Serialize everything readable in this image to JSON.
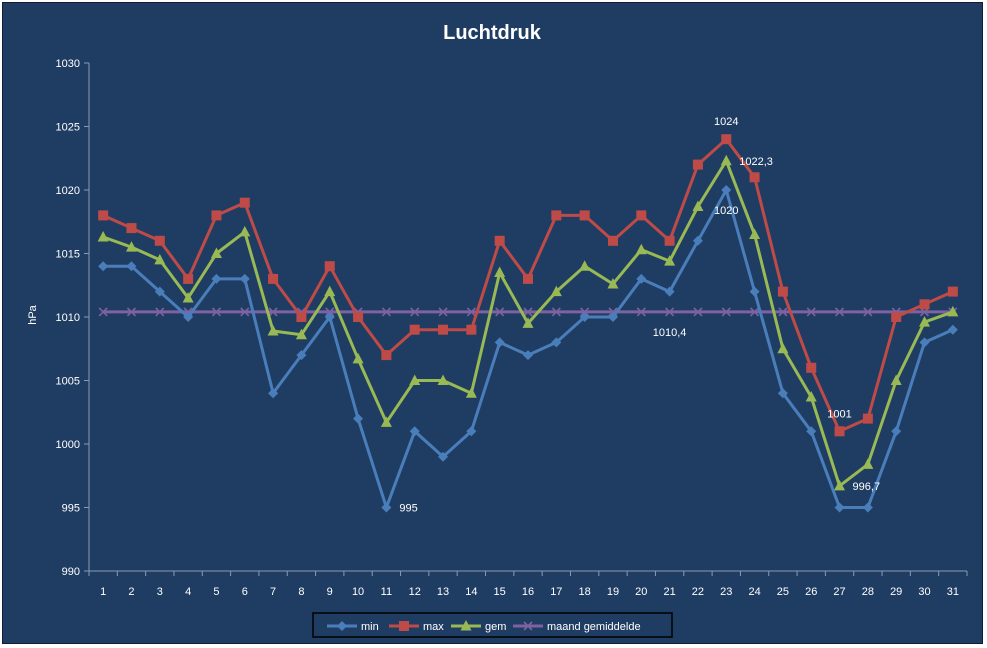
{
  "chart_data": {
    "type": "line",
    "title": "Luchtdruk",
    "xlabel": "",
    "ylabel": "hPa",
    "ylim": [
      990,
      1030
    ],
    "yticks": [
      990,
      995,
      1000,
      1005,
      1010,
      1015,
      1020,
      1025,
      1030
    ],
    "categories": [
      "1",
      "2",
      "3",
      "4",
      "5",
      "6",
      "7",
      "8",
      "9",
      "10",
      "11",
      "12",
      "13",
      "14",
      "15",
      "16",
      "17",
      "18",
      "19",
      "20",
      "21",
      "22",
      "23",
      "24",
      "25",
      "26",
      "27",
      "28",
      "29",
      "30",
      "31"
    ],
    "grid": false,
    "legend_position": "bottom",
    "series": [
      {
        "name": "min",
        "color": "#4a7ebb",
        "marker": "diamond",
        "values": [
          1014,
          1014,
          1012,
          1010,
          1013,
          1013,
          1004,
          1007,
          1010,
          1002,
          995,
          1001,
          999,
          1001,
          1008,
          1007,
          1008,
          1010,
          1010,
          1013,
          1012,
          1016,
          1020,
          1012,
          1004,
          1001,
          995,
          995,
          1001,
          1008,
          1009
        ]
      },
      {
        "name": "max",
        "color": "#be4b48",
        "marker": "square",
        "values": [
          1018,
          1017,
          1016,
          1013,
          1018,
          1019,
          1013,
          1010,
          1014,
          1010,
          1007,
          1009,
          1009,
          1009,
          1016,
          1013,
          1018,
          1018,
          1016,
          1018,
          1016,
          1022,
          1024,
          1021,
          1012,
          1006,
          1001,
          1002,
          1010,
          1011,
          1012
        ]
      },
      {
        "name": "gem",
        "color": "#98b954",
        "marker": "triangle",
        "values": [
          1016.3,
          1015.5,
          1014.5,
          1011.5,
          1015,
          1016.7,
          1008.9,
          1008.6,
          1012,
          1006.7,
          1001.7,
          1005,
          1005,
          1004,
          1013.5,
          1009.5,
          1012,
          1014,
          1012.6,
          1015.3,
          1014.4,
          1018.7,
          1022.3,
          1016.5,
          1007.5,
          1003.7,
          996.7,
          998.4,
          1005,
          1009.6,
          1010.4
        ]
      },
      {
        "name": "maand gemiddelde",
        "color": "#7e62a1",
        "marker": "x",
        "values": [
          1010.4,
          1010.4,
          1010.4,
          1010.4,
          1010.4,
          1010.4,
          1010.4,
          1010.4,
          1010.4,
          1010.4,
          1010.4,
          1010.4,
          1010.4,
          1010.4,
          1010.4,
          1010.4,
          1010.4,
          1010.4,
          1010.4,
          1010.4,
          1010.4,
          1010.4,
          1010.4,
          1010.4,
          1010.4,
          1010.4,
          1010.4,
          1010.4,
          1010.4,
          1010.4,
          1010.4
        ]
      }
    ],
    "annotations": [
      {
        "text": "1024",
        "series": "max",
        "index": 22,
        "place": "above"
      },
      {
        "text": "1022,3",
        "series": "gem",
        "index": 22,
        "place": "right"
      },
      {
        "text": "1020",
        "series": "min",
        "index": 22,
        "place": "below-left"
      },
      {
        "text": "1010,4",
        "series": "maand gemiddelde",
        "index": 20,
        "place": "below"
      },
      {
        "text": "995",
        "series": "min",
        "index": 10,
        "place": "right"
      },
      {
        "text": "1001",
        "series": "max",
        "index": 26,
        "place": "above"
      },
      {
        "text": "996,7",
        "series": "gem",
        "index": 26,
        "place": "right"
      }
    ]
  }
}
